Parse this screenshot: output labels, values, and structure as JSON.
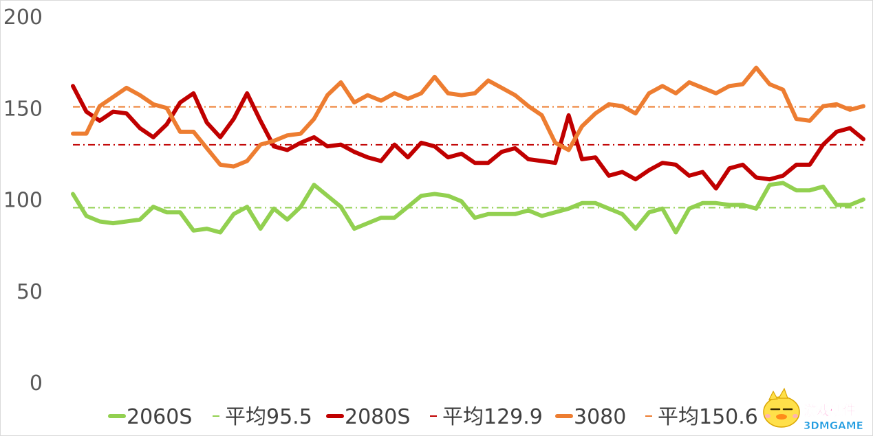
{
  "chart_data": {
    "type": "line",
    "ylim": [
      0,
      200
    ],
    "yticks": [
      "0",
      "50",
      "100",
      "150",
      "200"
    ],
    "grid": false,
    "legend_position": "bottom",
    "series": [
      {
        "name": "2060S",
        "color": "#92d050",
        "values": [
          103,
          91,
          88,
          87,
          88,
          89,
          96,
          93,
          93,
          83,
          84,
          82,
          92,
          96,
          84,
          95,
          89,
          96,
          108,
          102,
          96,
          84,
          87,
          90,
          90,
          96,
          102,
          103,
          102,
          99,
          90,
          92,
          92,
          92,
          94,
          91,
          93,
          95,
          98,
          98,
          95,
          92,
          84,
          93,
          95,
          82,
          95,
          98,
          98,
          97,
          97,
          95,
          108,
          109,
          105,
          105,
          107,
          97,
          97,
          100
        ]
      },
      {
        "name": "平均95.5",
        "color": "#92d050",
        "dashed": true,
        "average": 95.5
      },
      {
        "name": "2080S",
        "color": "#c00000",
        "values": [
          162,
          148,
          143,
          148,
          147,
          139,
          134,
          141,
          153,
          158,
          142,
          134,
          144,
          158,
          143,
          129,
          127,
          131,
          134,
          129,
          130,
          126,
          123,
          121,
          130,
          123,
          131,
          129,
          123,
          125,
          120,
          120,
          126,
          128,
          122,
          121,
          120,
          146,
          122,
          123,
          113,
          115,
          111,
          116,
          120,
          119,
          113,
          115,
          106,
          117,
          119,
          112,
          111,
          113,
          119,
          119,
          130,
          137,
          139,
          133
        ]
      },
      {
        "name": "平均129.9",
        "color": "#c00000",
        "dashed": true,
        "average": 129.9
      },
      {
        "name": "3080",
        "color": "#ed7d31",
        "values": [
          136,
          136,
          151,
          156,
          161,
          157,
          152,
          150,
          137,
          137,
          128,
          119,
          118,
          121,
          130,
          132,
          135,
          136,
          144,
          157,
          164,
          153,
          157,
          154,
          158,
          155,
          158,
          167,
          158,
          157,
          158,
          165,
          161,
          157,
          151,
          146,
          131,
          127,
          140,
          147,
          152,
          151,
          147,
          158,
          162,
          158,
          164,
          161,
          158,
          162,
          163,
          172,
          163,
          160,
          144,
          143,
          151,
          152,
          149,
          151
        ]
      },
      {
        "name": "平均150.6",
        "color": "#ed7d31",
        "dashed": true,
        "average": 150.6
      }
    ]
  },
  "watermark": {
    "brand_cn": "游戏硬件",
    "brand_en": "3DMGAME",
    "icon": "yellow-chick-mascot-icon"
  }
}
